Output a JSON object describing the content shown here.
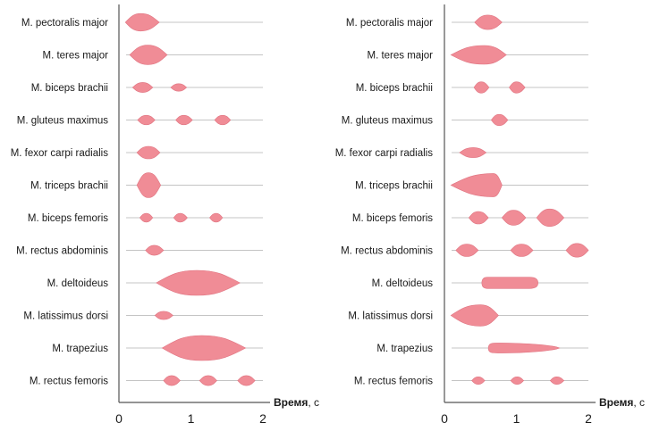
{
  "chart_data": [
    {
      "type": "emg-activation",
      "xlabel": "Время",
      "xunit": ", с",
      "xlim": [
        0,
        2
      ],
      "xticks": [
        "0",
        "1",
        "2"
      ],
      "amplitude_unit": "relative activation",
      "rows": [
        {
          "label": "M. pectoralis major",
          "bursts": [
            {
              "start": 0.09,
              "end": 0.56,
              "peak": 0.3,
              "amp": 0.7
            }
          ]
        },
        {
          "label": "M. teres major",
          "bursts": [
            {
              "start": 0.15,
              "end": 0.67,
              "peak": 0.4,
              "amp": 0.78
            }
          ]
        },
        {
          "label": "M. biceps brachii",
          "bursts": [
            {
              "start": 0.19,
              "end": 0.47,
              "peak": 0.33,
              "amp": 0.4
            },
            {
              "start": 0.72,
              "end": 0.94,
              "peak": 0.83,
              "amp": 0.3
            }
          ]
        },
        {
          "label": "M. gluteus maximus",
          "bursts": [
            {
              "start": 0.26,
              "end": 0.5,
              "peak": 0.38,
              "amp": 0.38
            },
            {
              "start": 0.79,
              "end": 1.02,
              "peak": 0.9,
              "amp": 0.38
            },
            {
              "start": 1.33,
              "end": 1.55,
              "peak": 1.44,
              "amp": 0.38
            }
          ]
        },
        {
          "label": "M. fexor carpi radialis",
          "bursts": [
            {
              "start": 0.25,
              "end": 0.57,
              "peak": 0.41,
              "amp": 0.5
            }
          ]
        },
        {
          "label": "M. triceps brachii",
          "bursts": [
            {
              "start": 0.25,
              "end": 0.58,
              "peak": 0.41,
              "amp": 1.0
            }
          ]
        },
        {
          "label": "M. biceps femoris",
          "bursts": [
            {
              "start": 0.29,
              "end": 0.47,
              "peak": 0.38,
              "amp": 0.35
            },
            {
              "start": 0.76,
              "end": 0.95,
              "peak": 0.85,
              "amp": 0.35
            },
            {
              "start": 1.26,
              "end": 1.44,
              "peak": 1.35,
              "amp": 0.35
            }
          ]
        },
        {
          "label": "M. rectus abdominis",
          "bursts": [
            {
              "start": 0.37,
              "end": 0.62,
              "peak": 0.49,
              "amp": 0.4
            }
          ]
        },
        {
          "label": "M. deltoideus",
          "bursts": [
            {
              "start": 0.52,
              "end": 1.68,
              "peak": 1.08,
              "amp": 1.0
            }
          ]
        },
        {
          "label": "M. latissimus dorsi",
          "bursts": [
            {
              "start": 0.5,
              "end": 0.75,
              "peak": 0.62,
              "amp": 0.33
            }
          ]
        },
        {
          "label": "M. trapezius",
          "bursts": [
            {
              "start": 0.6,
              "end": 1.76,
              "peak": 1.15,
              "amp": 1.0
            }
          ]
        },
        {
          "label": "M. rectus femoris",
          "bursts": [
            {
              "start": 0.62,
              "end": 0.85,
              "peak": 0.73,
              "amp": 0.4
            },
            {
              "start": 1.12,
              "end": 1.36,
              "peak": 1.24,
              "amp": 0.4
            },
            {
              "start": 1.65,
              "end": 1.89,
              "peak": 1.77,
              "amp": 0.4
            }
          ]
        }
      ]
    },
    {
      "type": "emg-activation",
      "xlabel": "Время",
      "xunit": ", с",
      "xlim": [
        0,
        2
      ],
      "xticks": [
        "0",
        "1",
        "2"
      ],
      "amplitude_unit": "relative activation",
      "rows": [
        {
          "label": "M. pectoralis major",
          "bursts": [
            {
              "start": 0.42,
              "end": 0.8,
              "peak": 0.6,
              "amp": 0.58
            }
          ]
        },
        {
          "label": "M. teres major",
          "bursts": [
            {
              "start": 0.09,
              "end": 0.86,
              "peak": 0.55,
              "amp": 0.75
            }
          ]
        },
        {
          "label": "M. biceps brachii",
          "bursts": [
            {
              "start": 0.41,
              "end": 0.62,
              "peak": 0.51,
              "amp": 0.45
            },
            {
              "start": 0.9,
              "end": 1.12,
              "peak": 1.0,
              "amp": 0.45
            }
          ]
        },
        {
          "label": "M. gluteus maximus",
          "bursts": [
            {
              "start": 0.65,
              "end": 0.88,
              "peak": 0.76,
              "amp": 0.45
            }
          ]
        },
        {
          "label": "M. fexor carpi radialis",
          "bursts": [
            {
              "start": 0.21,
              "end": 0.58,
              "peak": 0.4,
              "amp": 0.4
            }
          ]
        },
        {
          "label": "M. triceps brachii",
          "bursts": [
            {
              "start": 0.09,
              "end": 0.8,
              "peak": 0.68,
              "amp": 0.93
            }
          ]
        },
        {
          "label": "M. biceps femoris",
          "bursts": [
            {
              "start": 0.34,
              "end": 0.61,
              "peak": 0.47,
              "amp": 0.5
            },
            {
              "start": 0.8,
              "end": 1.13,
              "peak": 0.96,
              "amp": 0.6
            },
            {
              "start": 1.28,
              "end": 1.66,
              "peak": 1.46,
              "amp": 0.7
            }
          ]
        },
        {
          "label": "M. rectus abdominis",
          "bursts": [
            {
              "start": 0.16,
              "end": 0.47,
              "peak": 0.31,
              "amp": 0.5
            },
            {
              "start": 0.92,
              "end": 1.23,
              "peak": 1.07,
              "amp": 0.5
            },
            {
              "start": 1.69,
              "end": 2.0,
              "peak": 1.84,
              "amp": 0.55
            }
          ]
        },
        {
          "label": "M. deltoideus",
          "bursts": [
            {
              "start": 0.52,
              "end": 1.3,
              "peak": 0.8,
              "amp": 0.45,
              "shape": "tube"
            }
          ]
        },
        {
          "label": "M. latissimus dorsi",
          "bursts": [
            {
              "start": 0.09,
              "end": 0.75,
              "peak": 0.5,
              "amp": 0.85
            }
          ]
        },
        {
          "label": "M. trapezius",
          "bursts": [
            {
              "start": 0.61,
              "end": 1.6,
              "peak": 0.75,
              "amp": 0.4,
              "shape": "taper"
            }
          ]
        },
        {
          "label": "M. rectus femoris",
          "bursts": [
            {
              "start": 0.38,
              "end": 0.56,
              "peak": 0.47,
              "amp": 0.3
            },
            {
              "start": 0.92,
              "end": 1.1,
              "peak": 1.01,
              "amp": 0.3
            },
            {
              "start": 1.47,
              "end": 1.66,
              "peak": 1.56,
              "amp": 0.3
            }
          ]
        }
      ]
    }
  ],
  "colors": {
    "burst": "#f08c96",
    "burst_edge": "#e07582",
    "baseline": "#c4c4c4",
    "axis": "#555555"
  }
}
